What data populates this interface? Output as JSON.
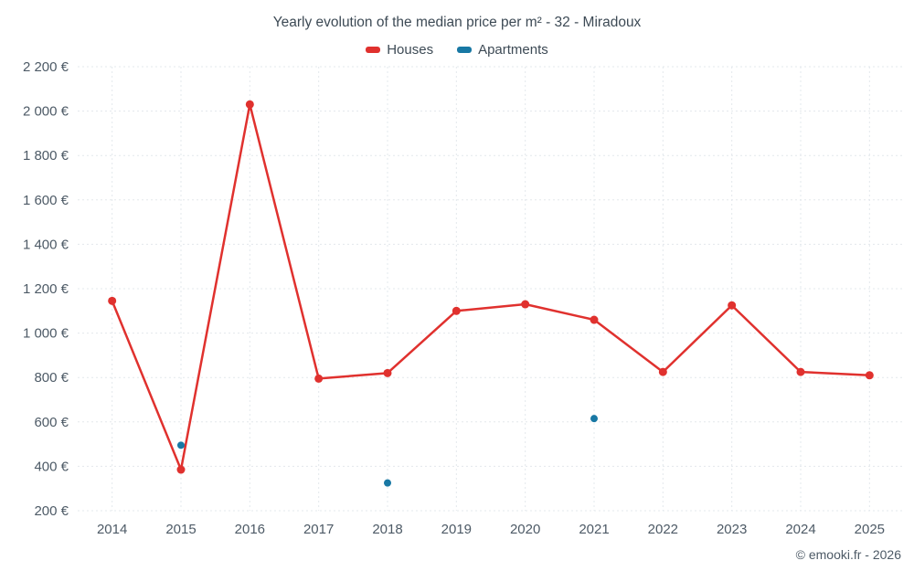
{
  "header": {
    "title": "Yearly evolution of the median price per m² - 32 - Miradoux"
  },
  "footer": {
    "credit": "© emooki.fr - 2026"
  },
  "chart_data": {
    "type": "line",
    "title": "Yearly evolution of the median price per m² - 32 - Miradoux",
    "categories": [
      "2014",
      "2015",
      "2016",
      "2017",
      "2018",
      "2019",
      "2020",
      "2021",
      "2022",
      "2023",
      "2024",
      "2025"
    ],
    "series": [
      {
        "name": "Houses",
        "type": "line",
        "color": "#e0312e",
        "values": [
          1145,
          385,
          2030,
          795,
          820,
          1100,
          1130,
          1060,
          825,
          1125,
          825,
          810
        ]
      },
      {
        "name": "Apartments",
        "type": "scatter",
        "color": "#1878a4",
        "values": [
          null,
          495,
          null,
          null,
          325,
          null,
          null,
          615,
          null,
          null,
          null,
          null
        ]
      }
    ],
    "xlabel": "",
    "ylabel": "",
    "ylim": [
      200,
      2200
    ],
    "ytick_values": [
      200,
      400,
      600,
      800,
      1000,
      1200,
      1400,
      1600,
      1800,
      2000,
      2200
    ],
    "ytick_labels": [
      "200 €",
      "400 €",
      "600 €",
      "800 €",
      "1 000 €",
      "1 200 €",
      "1 400 €",
      "1 600 €",
      "1 800 €",
      "2 000 €",
      "2 200 €"
    ],
    "grid": true,
    "legend_position": "top"
  }
}
